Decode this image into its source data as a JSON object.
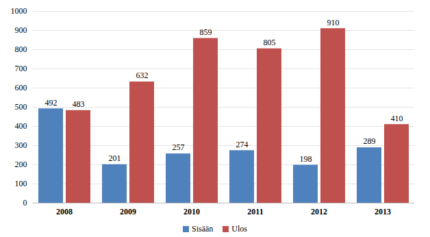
{
  "chart_data": {
    "type": "bar",
    "categories": [
      "2008",
      "2009",
      "2010",
      "2011",
      "2012",
      "2013"
    ],
    "series": [
      {
        "name": "Sisään",
        "color": "#4f81bd",
        "values": [
          492,
          201,
          257,
          274,
          198,
          289
        ]
      },
      {
        "name": "Ulos",
        "color": "#c0504d",
        "values": [
          483,
          632,
          859,
          805,
          910,
          410
        ]
      }
    ],
    "ylim": [
      0,
      1000
    ],
    "yticks": [
      0,
      100,
      200,
      300,
      400,
      500,
      600,
      700,
      800,
      900,
      1000
    ],
    "grid": true,
    "legend": "bottom",
    "data_labels": true
  }
}
